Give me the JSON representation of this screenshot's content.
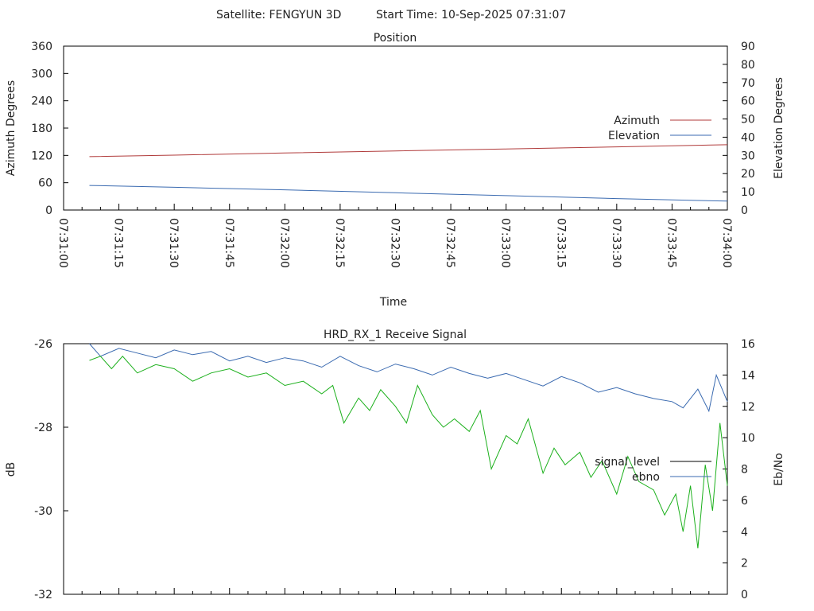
{
  "header": {
    "satellite_text": "Satellite: FENGYUN 3D",
    "start_time_text": "Start Time: 10-Sep-2025 07:31:07"
  },
  "chart_data": [
    {
      "type": "line",
      "title": "Position",
      "xlabel": "Time",
      "ylabel": "Azimuth Degrees",
      "y2label": "Elevation Degrees",
      "ylim": [
        0,
        360
      ],
      "y2lim": [
        0,
        90
      ],
      "yticks": [
        "0",
        "60",
        "120",
        "180",
        "240",
        "300",
        "360"
      ],
      "y2ticks": [
        "0",
        "10",
        "20",
        "30",
        "40",
        "50",
        "60",
        "70",
        "80",
        "90"
      ],
      "xlim": [
        "07:31:00",
        "07:34:00"
      ],
      "xticks": [
        "07:31:00",
        "07:31:15",
        "07:31:30",
        "07:31:45",
        "07:32:00",
        "07:32:15",
        "07:32:30",
        "07:32:45",
        "07:33:00",
        "07:33:15",
        "07:33:30",
        "07:33:45",
        "07:34:00"
      ],
      "legend_position": "right",
      "grid": false,
      "series": [
        {
          "name": "Azimuth",
          "axis": "left",
          "color": "#b03a3a",
          "x": [
            "07:31:07",
            "07:31:30",
            "07:32:00",
            "07:32:30",
            "07:33:00",
            "07:33:30",
            "07:34:00"
          ],
          "values": [
            117.3,
            120.5,
            125.3,
            129.9,
            134.1,
            138.8,
            143.5
          ]
        },
        {
          "name": "Elevation",
          "axis": "right",
          "color": "#3a6ab0",
          "x": [
            "07:31:07",
            "07:31:30",
            "07:32:00",
            "07:32:30",
            "07:33:00",
            "07:33:30",
            "07:34:00"
          ],
          "values": [
            13.5,
            12.5,
            11.1,
            9.5,
            7.9,
            6.3,
            4.9
          ]
        }
      ]
    },
    {
      "type": "line",
      "title": "HRD_RX_1 Receive Signal",
      "xlabel": "",
      "ylabel": "dB",
      "y2label": "Eb/No",
      "ylim": [
        -32,
        -26
      ],
      "y2lim": [
        0,
        16
      ],
      "yticks": [
        "-32",
        "-30",
        "-28",
        "-26"
      ],
      "y2ticks": [
        "0",
        "2",
        "4",
        "6",
        "8",
        "10",
        "12",
        "14",
        "16"
      ],
      "xlim": [
        "07:31:00",
        "07:34:00"
      ],
      "legend_position": "right",
      "grid": false,
      "series": [
        {
          "name": "signal_level",
          "axis": "left",
          "color": "#000000",
          "values": []
        },
        {
          "name": "ebno",
          "axis": "right",
          "color": "#3a6ab0",
          "x": [
            "07:31:07",
            "07:31:10",
            "07:31:15",
            "07:31:20",
            "07:31:25",
            "07:31:30",
            "07:31:35",
            "07:31:40",
            "07:31:45",
            "07:31:50",
            "07:31:55",
            "07:32:00",
            "07:32:05",
            "07:32:10",
            "07:32:15",
            "07:32:20",
            "07:32:25",
            "07:32:30",
            "07:32:35",
            "07:32:40",
            "07:32:45",
            "07:32:50",
            "07:32:55",
            "07:33:00",
            "07:33:05",
            "07:33:10",
            "07:33:15",
            "07:33:20",
            "07:33:25",
            "07:33:30",
            "07:33:35",
            "07:33:40",
            "07:33:45",
            "07:33:48",
            "07:33:52",
            "07:33:55",
            "07:33:57",
            "07:34:00"
          ],
          "values": [
            16.0,
            15.2,
            15.7,
            15.4,
            15.1,
            15.6,
            15.3,
            15.5,
            14.9,
            15.2,
            14.8,
            15.1,
            14.9,
            14.5,
            15.2,
            14.6,
            14.2,
            14.7,
            14.4,
            14.0,
            14.5,
            14.1,
            13.8,
            14.1,
            13.7,
            13.3,
            13.9,
            13.5,
            12.9,
            13.2,
            12.8,
            12.5,
            12.3,
            11.9,
            13.1,
            11.7,
            14.0,
            12.3
          ]
        },
        {
          "name": "",
          "axis": "left",
          "color": "#1cb01c",
          "x": [
            "07:31:07",
            "07:31:10",
            "07:31:13",
            "07:31:16",
            "07:31:20",
            "07:31:25",
            "07:31:30",
            "07:31:35",
            "07:31:40",
            "07:31:45",
            "07:31:50",
            "07:31:55",
            "07:32:00",
            "07:32:05",
            "07:32:10",
            "07:32:13",
            "07:32:16",
            "07:32:20",
            "07:32:23",
            "07:32:26",
            "07:32:30",
            "07:32:33",
            "07:32:36",
            "07:32:40",
            "07:32:43",
            "07:32:46",
            "07:32:50",
            "07:32:53",
            "07:32:56",
            "07:33:00",
            "07:33:03",
            "07:33:06",
            "07:33:10",
            "07:33:13",
            "07:33:16",
            "07:33:20",
            "07:33:23",
            "07:33:26",
            "07:33:30",
            "07:33:33",
            "07:33:36",
            "07:33:40",
            "07:33:43",
            "07:33:46",
            "07:33:48",
            "07:33:50",
            "07:33:52",
            "07:33:54",
            "07:33:56",
            "07:33:58",
            "07:34:00"
          ],
          "values": [
            -26.4,
            -26.3,
            -26.6,
            -26.3,
            -26.7,
            -26.5,
            -26.6,
            -26.9,
            -26.7,
            -26.6,
            -26.8,
            -26.7,
            -27.0,
            -26.9,
            -27.2,
            -27.0,
            -27.9,
            -27.3,
            -27.6,
            -27.1,
            -27.5,
            -27.9,
            -27.0,
            -27.7,
            -28.0,
            -27.8,
            -28.1,
            -27.6,
            -29.0,
            -28.2,
            -28.4,
            -27.8,
            -29.1,
            -28.5,
            -28.9,
            -28.6,
            -29.2,
            -28.8,
            -29.6,
            -28.7,
            -29.3,
            -29.5,
            -30.1,
            -29.6,
            -30.5,
            -29.4,
            -30.9,
            -28.9,
            -30.0,
            -27.9,
            -29.4
          ]
        }
      ]
    }
  ]
}
